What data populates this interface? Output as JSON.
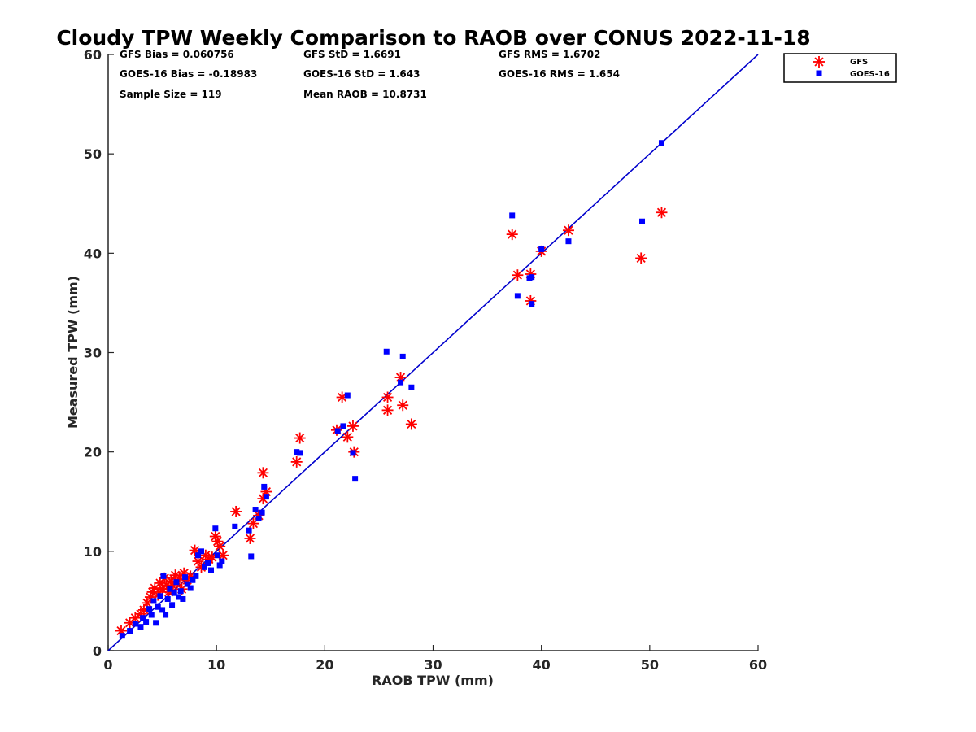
{
  "chart_data": {
    "type": "scatter",
    "title": "Cloudy TPW Weekly Comparison to RAOB over CONUS 2022-11-18",
    "xlabel": "RAOB TPW (mm)",
    "ylabel": "Measured TPW (mm)",
    "xlim": [
      0,
      60
    ],
    "ylim": [
      0,
      60
    ],
    "xticks": [
      0,
      10,
      20,
      30,
      40,
      50,
      60
    ],
    "yticks": [
      0,
      10,
      20,
      30,
      40,
      50,
      60
    ],
    "grid": false,
    "legend_position": "outside-top-right",
    "reference_line": {
      "from": [
        0,
        0
      ],
      "to": [
        60,
        60
      ],
      "color": "#0000cc"
    },
    "stats": [
      [
        "GFS Bias = 0.060756",
        "GFS StD = 1.6691",
        "GFS RMS = 1.6702"
      ],
      [
        "GOES-16 Bias = -0.18983",
        "GOES-16 StD = 1.643",
        "GOES-16 RMS = 1.654"
      ],
      [
        "Sample Size = 119",
        "Mean RAOB = 10.8731"
      ]
    ],
    "series": [
      {
        "name": "GFS",
        "marker": "asterisk",
        "color": "#ff0000",
        "points": [
          [
            1.2,
            2.0
          ],
          [
            2.0,
            2.8
          ],
          [
            2.5,
            3.3
          ],
          [
            3.0,
            3.7
          ],
          [
            3.3,
            4.1
          ],
          [
            3.6,
            4.8
          ],
          [
            3.9,
            5.4
          ],
          [
            4.1,
            5.9
          ],
          [
            4.3,
            6.3
          ],
          [
            4.6,
            5.6
          ],
          [
            4.8,
            6.8
          ],
          [
            5.0,
            6.2
          ],
          [
            5.2,
            7.3
          ],
          [
            5.4,
            6.6
          ],
          [
            5.6,
            5.9
          ],
          [
            5.8,
            7.0
          ],
          [
            6.0,
            6.5
          ],
          [
            6.2,
            7.6
          ],
          [
            6.4,
            6.9
          ],
          [
            6.6,
            7.4
          ],
          [
            6.8,
            6.2
          ],
          [
            7.0,
            7.8
          ],
          [
            7.3,
            7.1
          ],
          [
            7.6,
            7.5
          ],
          [
            8.0,
            10.1
          ],
          [
            8.3,
            9.0
          ],
          [
            8.6,
            8.4
          ],
          [
            9.0,
            9.6
          ],
          [
            9.3,
            9.2
          ],
          [
            9.6,
            9.4
          ],
          [
            9.9,
            11.5
          ],
          [
            10.1,
            11.0
          ],
          [
            10.3,
            10.5
          ],
          [
            10.6,
            9.6
          ],
          [
            11.8,
            14.0
          ],
          [
            13.1,
            11.3
          ],
          [
            13.4,
            12.8
          ],
          [
            13.9,
            13.6
          ],
          [
            14.3,
            15.3
          ],
          [
            14.3,
            17.9
          ],
          [
            14.6,
            16.0
          ],
          [
            17.4,
            19.0
          ],
          [
            17.7,
            21.4
          ],
          [
            21.1,
            22.2
          ],
          [
            21.6,
            25.5
          ],
          [
            22.1,
            21.5
          ],
          [
            22.6,
            22.6
          ],
          [
            22.7,
            20.0
          ],
          [
            25.8,
            25.5
          ],
          [
            25.8,
            24.2
          ],
          [
            27.0,
            27.5
          ],
          [
            27.2,
            24.7
          ],
          [
            28.0,
            22.8
          ],
          [
            37.3,
            41.9
          ],
          [
            37.8,
            37.8
          ],
          [
            39.0,
            37.9
          ],
          [
            39.0,
            35.2
          ],
          [
            40.0,
            40.2
          ],
          [
            42.5,
            42.3
          ],
          [
            49.2,
            39.5
          ],
          [
            51.1,
            44.1
          ]
        ]
      },
      {
        "name": "GOES-16",
        "marker": "square",
        "color": "#0000ff",
        "points": [
          [
            1.3,
            1.5
          ],
          [
            2.0,
            2.0
          ],
          [
            2.5,
            2.7
          ],
          [
            3.0,
            2.4
          ],
          [
            3.2,
            3.3
          ],
          [
            3.5,
            2.9
          ],
          [
            3.8,
            4.2
          ],
          [
            4.0,
            3.6
          ],
          [
            4.2,
            5.0
          ],
          [
            4.4,
            2.8
          ],
          [
            4.6,
            4.4
          ],
          [
            4.8,
            5.5
          ],
          [
            5.0,
            4.1
          ],
          [
            5.1,
            7.5
          ],
          [
            5.3,
            3.6
          ],
          [
            5.5,
            5.2
          ],
          [
            5.7,
            6.2
          ],
          [
            5.9,
            4.6
          ],
          [
            6.1,
            5.8
          ],
          [
            6.3,
            6.9
          ],
          [
            6.5,
            5.4
          ],
          [
            6.7,
            6.0
          ],
          [
            6.9,
            5.2
          ],
          [
            7.1,
            7.4
          ],
          [
            7.3,
            6.7
          ],
          [
            7.6,
            6.3
          ],
          [
            7.8,
            7.1
          ],
          [
            8.1,
            7.5
          ],
          [
            8.3,
            9.6
          ],
          [
            8.6,
            10.0
          ],
          [
            8.9,
            8.4
          ],
          [
            9.2,
            8.8
          ],
          [
            9.5,
            8.1
          ],
          [
            9.9,
            12.3
          ],
          [
            10.1,
            9.6
          ],
          [
            10.3,
            8.6
          ],
          [
            10.5,
            9.0
          ],
          [
            11.7,
            12.5
          ],
          [
            13.0,
            12.1
          ],
          [
            13.2,
            9.5
          ],
          [
            13.6,
            14.2
          ],
          [
            13.9,
            13.3
          ],
          [
            14.2,
            13.9
          ],
          [
            14.4,
            16.5
          ],
          [
            14.6,
            15.5
          ],
          [
            17.4,
            20.0
          ],
          [
            17.7,
            19.9
          ],
          [
            21.2,
            22.1
          ],
          [
            21.7,
            22.6
          ],
          [
            22.1,
            25.7
          ],
          [
            22.6,
            19.9
          ],
          [
            22.8,
            17.3
          ],
          [
            25.7,
            30.1
          ],
          [
            27.0,
            27.0
          ],
          [
            27.2,
            29.6
          ],
          [
            28.0,
            26.5
          ],
          [
            37.3,
            43.8
          ],
          [
            37.8,
            35.7
          ],
          [
            38.9,
            37.5
          ],
          [
            39.1,
            37.6
          ],
          [
            39.1,
            34.9
          ],
          [
            40.0,
            40.4
          ],
          [
            42.5,
            41.2
          ],
          [
            49.3,
            43.2
          ],
          [
            51.1,
            51.1
          ]
        ]
      }
    ]
  }
}
